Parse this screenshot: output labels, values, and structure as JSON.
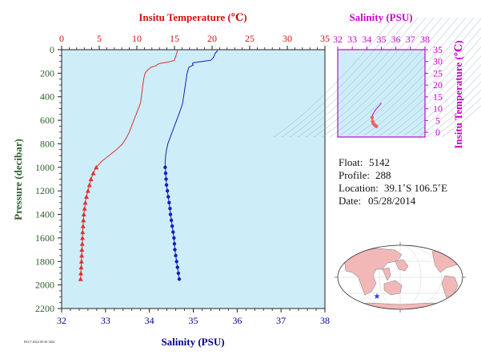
{
  "chart_data": [
    {
      "type": "line",
      "top_axis_label": "Insitu Temperature (℃)",
      "bottom_axis_label": "Salinity (PSU)",
      "ylabel": "Pressure (decibar)",
      "temperature_axis": {
        "range": [
          0,
          35
        ],
        "ticks": [
          "0",
          "5",
          "10",
          "15",
          "20",
          "25",
          "30",
          "35"
        ]
      },
      "salinity_axis": {
        "range": [
          32,
          38
        ],
        "ticks": [
          "32",
          "33",
          "34",
          "35",
          "36",
          "37",
          "38"
        ]
      },
      "pressure_axis": {
        "range": [
          0,
          2200
        ],
        "reversed": true,
        "ticks": [
          "0",
          "200",
          "400",
          "600",
          "800",
          "1000",
          "1200",
          "1400",
          "1600",
          "1800",
          "2000",
          "2200"
        ]
      },
      "colors": {
        "temperature": "#e03030",
        "salinity": "#1020c0",
        "plot_bg": "#cdeef8"
      },
      "temperature_profile": {
        "pressure": [
          5,
          10,
          30,
          50,
          70,
          90,
          105,
          115,
          125,
          135,
          150,
          175,
          200,
          250,
          300,
          350,
          400,
          450,
          500,
          550,
          600,
          650,
          700,
          750,
          800,
          850,
          900,
          950,
          1000,
          1050,
          1100,
          1150,
          1200,
          1250,
          1300,
          1350,
          1400,
          1450,
          1500,
          1550,
          1600,
          1650,
          1700,
          1750,
          1800,
          1850,
          1900,
          1950
        ],
        "temperature": [
          15.4,
          15.4,
          15.3,
          15.2,
          15.1,
          15.0,
          14.2,
          13.2,
          12.7,
          12.6,
          11.9,
          11.4,
          11.1,
          10.9,
          10.8,
          10.7,
          10.6,
          10.5,
          10.2,
          9.9,
          9.6,
          9.3,
          9.0,
          8.6,
          8.1,
          7.3,
          6.3,
          5.3,
          4.6,
          4.2,
          3.9,
          3.7,
          3.5,
          3.3,
          3.15,
          3.05,
          2.95,
          2.9,
          2.85,
          2.8,
          2.77,
          2.74,
          2.7,
          2.67,
          2.64,
          2.6,
          2.56,
          2.52
        ],
        "markers_from_pressure": 1000
      },
      "salinity_profile": {
        "pressure": [
          5,
          10,
          30,
          50,
          70,
          90,
          100,
          110,
          120,
          130,
          140,
          150,
          175,
          200,
          250,
          300,
          350,
          400,
          450,
          500,
          550,
          600,
          650,
          700,
          750,
          800,
          850,
          900,
          950,
          1000,
          1050,
          1100,
          1150,
          1200,
          1250,
          1300,
          1350,
          1400,
          1450,
          1500,
          1550,
          1600,
          1650,
          1700,
          1750,
          1800,
          1850,
          1900,
          1950
        ],
        "salinity": [
          35.55,
          35.55,
          35.5,
          35.48,
          35.45,
          35.4,
          35.2,
          35.0,
          34.98,
          35.0,
          34.95,
          34.9,
          34.88,
          34.86,
          34.84,
          34.82,
          34.8,
          34.78,
          34.76,
          34.72,
          34.67,
          34.62,
          34.57,
          34.52,
          34.47,
          34.42,
          34.39,
          34.37,
          34.36,
          34.36,
          34.37,
          34.38,
          34.39,
          34.41,
          34.43,
          34.45,
          34.47,
          34.48,
          34.5,
          34.52,
          34.54,
          34.56,
          34.57,
          34.58,
          34.6,
          34.62,
          34.64,
          34.66,
          34.68
        ],
        "markers_from_pressure": 1000
      }
    },
    {
      "type": "scatter",
      "name": "ts-diagram",
      "top_axis_label": "Salinity (PSU)",
      "right_axis_label": "Insitu Temperature (℃)",
      "salinity_axis": {
        "range": [
          32,
          38
        ],
        "ticks": [
          "32",
          "33",
          "34",
          "35",
          "36",
          "37",
          "38"
        ]
      },
      "temperature_axis": {
        "range": [
          -2,
          35
        ],
        "ticks": [
          "0",
          "5",
          "10",
          "15",
          "20",
          "25",
          "30",
          "35"
        ]
      },
      "points_salinity": [
        34.66,
        34.6,
        34.52,
        34.45,
        34.4,
        34.36,
        34.4,
        34.5,
        34.6,
        34.7,
        34.8,
        34.9,
        35.0
      ],
      "points_temperature": [
        2.5,
        2.8,
        3.2,
        3.8,
        4.6,
        6.3,
        7.5,
        8.5,
        9.5,
        10.3,
        10.9,
        11.6,
        12.5
      ]
    }
  ],
  "float_info": {
    "float_label": "Float:",
    "float_value": "5142",
    "profile_label": "Profile:",
    "profile_value": "288",
    "location_label": "Location:",
    "location_value": "39.1˚S  106.5˚E",
    "date_label": "Date:",
    "date_value": "05/28/2014"
  },
  "footer_note": "FSI 7⁄ 2014-05-28 1204"
}
